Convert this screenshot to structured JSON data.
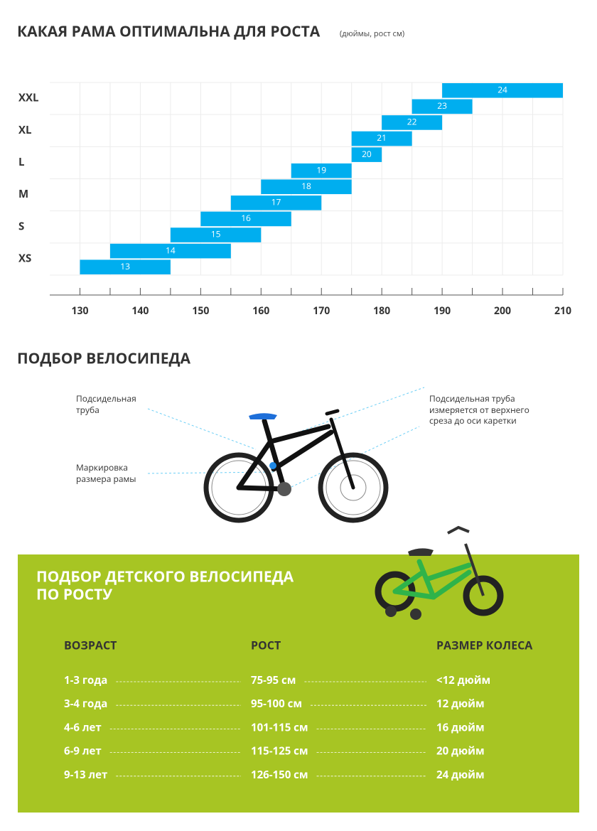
{
  "chart_data": {
    "type": "range-bar",
    "title": "КАКАЯ РАМА ОПТИМАЛЬНА ДЛЯ РОСТА",
    "subtitle": "(дюймы,  рост см)",
    "categories": [
      "13",
      "14",
      "15",
      "16",
      "17",
      "18",
      "19",
      "20",
      "21",
      "22",
      "23",
      "24"
    ],
    "low": [
      130,
      135,
      145,
      150,
      155,
      160,
      165,
      175,
      175,
      180,
      185,
      190
    ],
    "high": [
      145,
      155,
      160,
      165,
      170,
      175,
      175,
      180,
      185,
      190,
      195,
      210
    ],
    "color": "#00aeef",
    "size_labels": [
      "XS",
      "S",
      "M",
      "L",
      "XL",
      "XXL"
    ],
    "xlim": [
      125,
      210
    ],
    "xticks": [
      130,
      140,
      150,
      160,
      170,
      180,
      190,
      200,
      210
    ],
    "xminorticks": [
      135,
      145,
      155,
      165,
      175,
      185,
      195,
      205
    ],
    "grid": true
  },
  "bike_section": {
    "title": "ПОДБОР ВЕЛОСИПЕДА",
    "annotations": [
      [
        "Подсидельная",
        "труба"
      ],
      [
        "Маркировка",
        "размера рамы"
      ],
      [
        "Подсидельная труба",
        "измеряется от верхнего",
        "среза до оси каретки"
      ]
    ]
  },
  "kids_section": {
    "title": [
      "ПОДБОР ДЕТСКОГО ВЕЛОСИПЕДА",
      "ПО РОСТУ"
    ],
    "headers": [
      "ВОЗРАСТ",
      "РОСТ",
      "РАЗМЕР КОЛЕСА"
    ],
    "rows": [
      [
        "1-3 года",
        "75-95 см",
        "<12 дюйм"
      ],
      [
        "3-4 года",
        "95-100 см",
        "12 дюйм"
      ],
      [
        "4-6 лет",
        "101-115 см",
        "16 дюйм"
      ],
      [
        "6-9 лет",
        "115-125 см",
        "20 дюйм"
      ],
      [
        "9-13 лет",
        "126-150 см",
        "24 дюйм"
      ]
    ]
  }
}
